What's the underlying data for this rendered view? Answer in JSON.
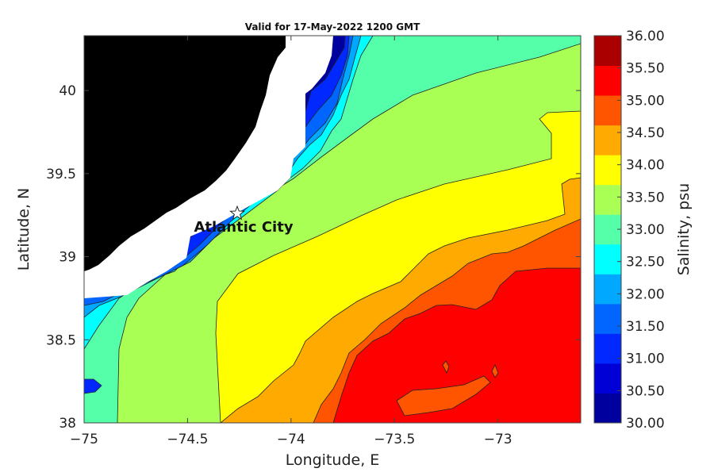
{
  "chart_data": {
    "type": "heatmap",
    "title": "Valid for 17-May-2022 1200 GMT",
    "xlabel": "Longitude, E",
    "ylabel": "Latitude, N",
    "xlim": [
      -75,
      -72.6
    ],
    "ylim": [
      38,
      40.33
    ],
    "x_ticks": [
      "-75",
      "-74.5",
      "-74",
      "-73.5",
      "-73"
    ],
    "x_tick_values": [
      -75,
      -74.5,
      -74,
      -73.5,
      -73
    ],
    "y_ticks": [
      "38",
      "38.5",
      "39",
      "39.5",
      "40"
    ],
    "y_tick_values": [
      38,
      38.5,
      39,
      39.5,
      40
    ],
    "colorbar": {
      "label": "Salinity, psu",
      "range": [
        30,
        36
      ],
      "tick_labels": [
        "30.00",
        "30.50",
        "31.00",
        "31.50",
        "32.00",
        "32.50",
        "33.00",
        "33.50",
        "34.00",
        "34.50",
        "35.00",
        "35.50",
        "36.00"
      ],
      "colors": [
        "#00009e",
        "#0000d6",
        "#0028ff",
        "#0066ff",
        "#00a8ff",
        "#00ffff",
        "#55ffaa",
        "#aaff55",
        "#ffff00",
        "#ffaa00",
        "#ff5500",
        "#ff0000",
        "#aa0000"
      ]
    },
    "land_color": "#000000",
    "annotations": [
      {
        "label": "Atlantic City",
        "marker": "star",
        "lon": -74.26,
        "lat": 39.26
      }
    ]
  }
}
